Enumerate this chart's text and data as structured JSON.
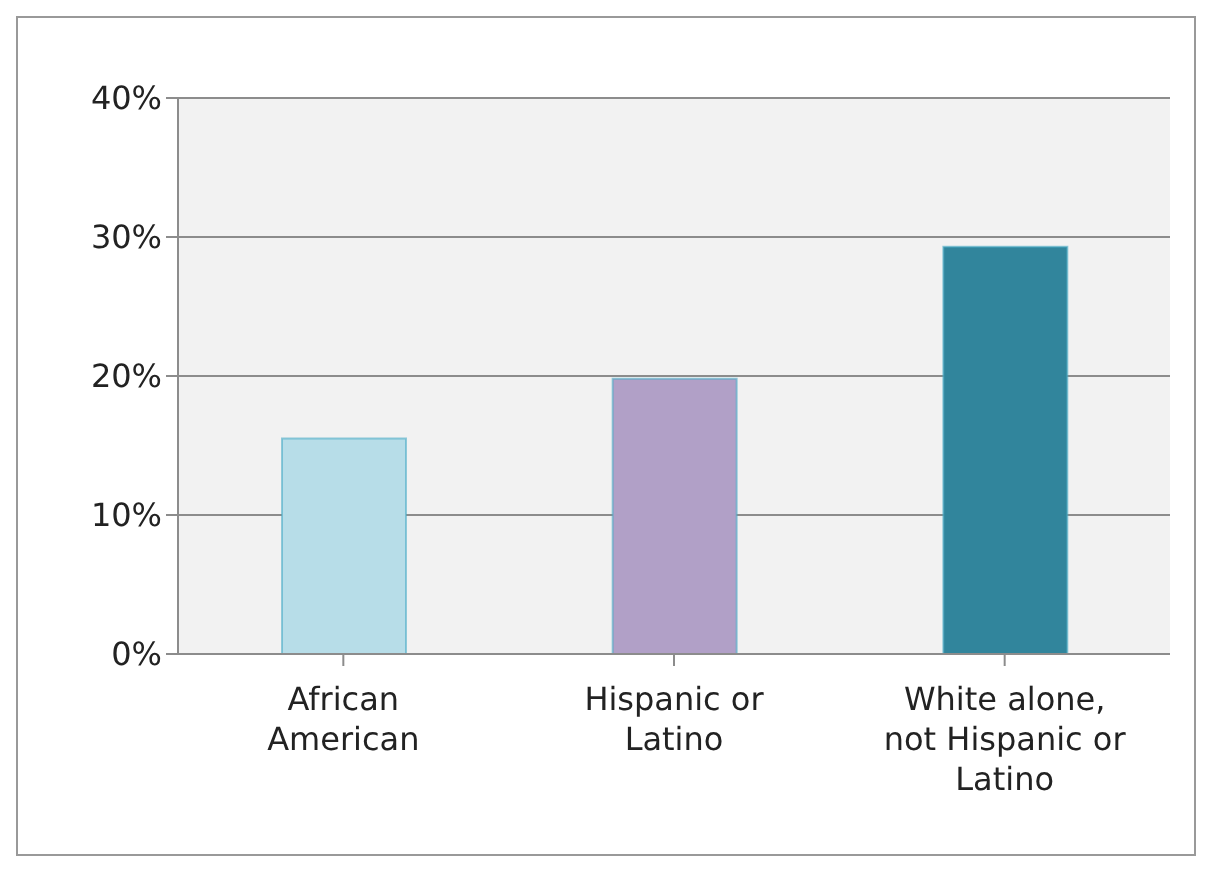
{
  "chart_data": {
    "type": "bar",
    "categories": [
      "African American",
      "Hispanic or Latino",
      "White alone, not Hispanic or Latino"
    ],
    "values": [
      15.5,
      19.8,
      29.3
    ],
    "colors": [
      "#b7dde8",
      "#b1a0c7",
      "#31859c"
    ],
    "ylim": [
      0,
      40
    ],
    "yticks": [
      {
        "value": 0,
        "label": "0%"
      },
      {
        "value": 10,
        "label": "10%"
      },
      {
        "value": 20,
        "label": "20%"
      },
      {
        "value": 30,
        "label": "30%"
      },
      {
        "value": 40,
        "label": "40%"
      }
    ],
    "grid": "y",
    "legend": false
  }
}
